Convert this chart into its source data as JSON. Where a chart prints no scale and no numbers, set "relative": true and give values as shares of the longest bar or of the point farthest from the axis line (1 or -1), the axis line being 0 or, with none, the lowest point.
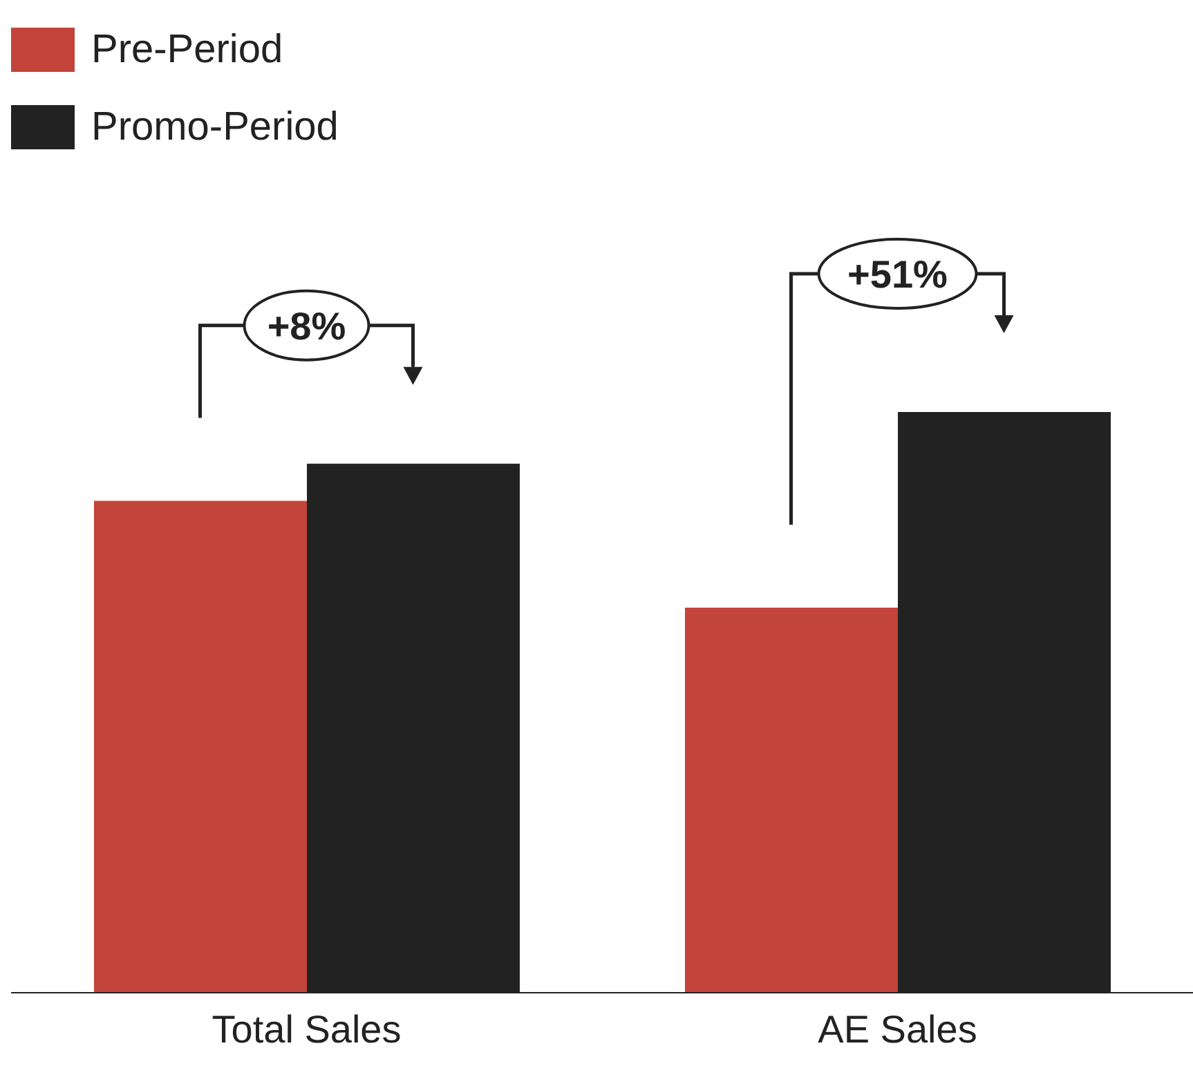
{
  "chart_data": {
    "type": "bar",
    "relative": true,
    "categories": [
      "Total Sales",
      "AE Sales"
    ],
    "series": [
      {
        "name": "Pre-Period",
        "color": "#c3443a",
        "values": [
          0.847,
          0.663
        ]
      },
      {
        "name": "Promo-Period",
        "color": "#222222",
        "values": [
          0.911,
          1
        ]
      }
    ],
    "annotations": [
      "+8%",
      "+51%"
    ],
    "legend": "top left"
  }
}
